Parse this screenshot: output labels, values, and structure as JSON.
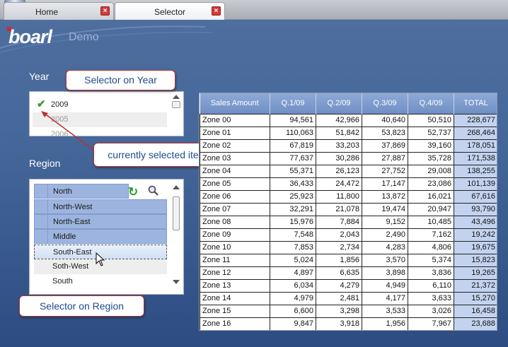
{
  "tabs": [
    {
      "label": "Home"
    },
    {
      "label": "Selector"
    }
  ],
  "logo": {
    "word": "boarl",
    "demo": "Demo"
  },
  "year": {
    "label": "Year",
    "items": [
      "2009",
      "2005",
      "2006"
    ]
  },
  "region": {
    "label": "Region",
    "items": [
      "North",
      "North-West",
      "North-East",
      "Middle",
      "South-East",
      "Soth-West",
      "South"
    ]
  },
  "callouts": {
    "year": "Selector on Year",
    "current": "currently selected item(s)",
    "region": "Selector on Region"
  },
  "table": {
    "headers": [
      "Sales Amount",
      "Q.1/09",
      "Q.2/09",
      "Q.3/09",
      "Q.4/09",
      "TOTAL"
    ],
    "rows": [
      [
        "Zone 00",
        "94,561",
        "42,966",
        "40,640",
        "50,510",
        "228,677"
      ],
      [
        "Zone 01",
        "110,063",
        "51,842",
        "53,823",
        "52,737",
        "268,464"
      ],
      [
        "Zone 02",
        "67,819",
        "33,203",
        "37,869",
        "39,160",
        "178,051"
      ],
      [
        "Zone 03",
        "77,637",
        "30,286",
        "27,887",
        "35,728",
        "171,538"
      ],
      [
        "Zone 04",
        "55,371",
        "26,123",
        "27,752",
        "29,008",
        "138,255"
      ],
      [
        "Zone 05",
        "36,433",
        "24,472",
        "17,147",
        "23,086",
        "101,139"
      ],
      [
        "Zone 06",
        "25,923",
        "11,800",
        "13,872",
        "16,021",
        "67,616"
      ],
      [
        "Zone 07",
        "32,291",
        "21,078",
        "19,474",
        "20,947",
        "93,790"
      ],
      [
        "Zone 08",
        "15,976",
        "7,884",
        "9,152",
        "10,485",
        "43,496"
      ],
      [
        "Zone 09",
        "7,548",
        "2,043",
        "2,490",
        "7,162",
        "19,242"
      ],
      [
        "Zone 10",
        "7,853",
        "2,734",
        "4,283",
        "4,806",
        "19,675"
      ],
      [
        "Zone 11",
        "5,024",
        "1,856",
        "3,570",
        "5,374",
        "15,823"
      ],
      [
        "Zone 12",
        "4,897",
        "6,635",
        "3,898",
        "3,836",
        "19,265"
      ],
      [
        "Zone 13",
        "6,034",
        "4,279",
        "4,949",
        "6,110",
        "21,372"
      ],
      [
        "Zone 14",
        "4,979",
        "2,481",
        "4,177",
        "3,633",
        "15,270"
      ],
      [
        "Zone 15",
        "6,600",
        "3,298",
        "3,533",
        "3,026",
        "16,458"
      ],
      [
        "Zone 16",
        "9,847",
        "3,918",
        "1,956",
        "7,967",
        "23,688"
      ]
    ]
  },
  "colors": {
    "accent": "#7f9bd1",
    "header": "#7d9bcd",
    "total_col": "#c3d3ef",
    "callout_border": "#b8322f",
    "callout_text": "#1f4b8e"
  }
}
